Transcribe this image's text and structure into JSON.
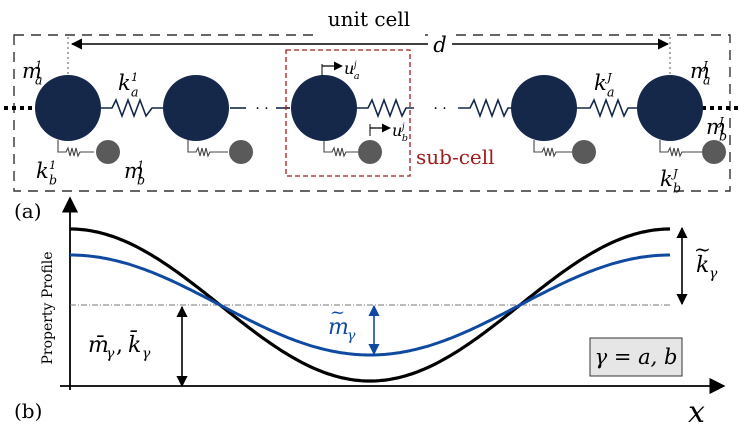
{
  "panel_a": {
    "panel_label": "(a)",
    "unit_cell_label": "unit cell",
    "period_label": "d",
    "subcell_label": "sub-cell",
    "ellipsis": "· ·",
    "labels": {
      "m_a_first": {
        "base": "m",
        "sup": "1",
        "sub": "a"
      },
      "k_a_first": {
        "base": "k",
        "sup": "1",
        "sub": "a"
      },
      "k_b_first": {
        "base": "k",
        "sup": "1",
        "sub": "b"
      },
      "m_b_first": {
        "base": "m",
        "sup": "1",
        "sub": "b"
      },
      "u_a": {
        "base": "u",
        "sup": "j",
        "sub": "a"
      },
      "u_b": {
        "base": "u",
        "sup": "j",
        "sub": "b"
      },
      "k_a_last": {
        "base": "k",
        "sup": "J",
        "sub": "a"
      },
      "m_a_last": {
        "base": "m",
        "sup": "J",
        "sub": "a"
      },
      "m_b_last": {
        "base": "m",
        "sup": "J",
        "sub": "b"
      },
      "k_b_last": {
        "base": "k",
        "sup": "J",
        "sub": "b"
      }
    }
  },
  "panel_b": {
    "panel_label": "(b)",
    "y_axis_label": "Property Profile",
    "x_axis_label": "x",
    "amp_k_label": {
      "base": "k",
      "tilde": "~",
      "sub": "γ"
    },
    "amp_m_label": {
      "base": "m",
      "tilde": "~",
      "sub": "γ"
    },
    "mean_label": "m̄",
    "mean_label_sub": "γ",
    "mean_label_sep": ", ",
    "mean_label_k": "k̄",
    "gamma_box": "γ = a, b"
  },
  "colors": {
    "mass": "#152849",
    "small_mass": "#5a5a5a",
    "subcell_box": "#a01c1c",
    "m_profile": "#0f4aa0",
    "k_profile": "#000000",
    "gamma_box_fill": "#e6e6e6"
  }
}
